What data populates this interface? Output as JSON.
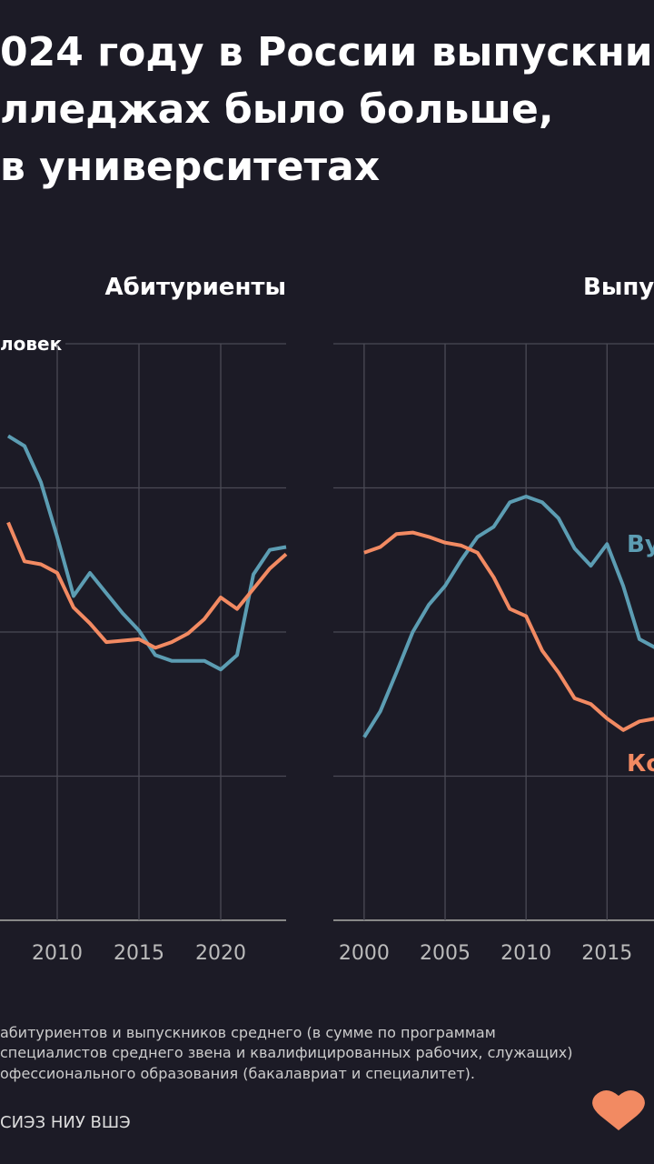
{
  "title_lines": [
    "024 году в России выпускни",
    "лледжах было больше,",
    "в университетах"
  ],
  "chart_data": [
    {
      "type": "line",
      "title": "Абитуриенты",
      "y_label": "ловек",
      "x": [
        2007,
        2008,
        2009,
        2010,
        2011,
        2012,
        2013,
        2014,
        2015,
        2016,
        2017,
        2018,
        2019,
        2020,
        2021,
        2022,
        2023,
        2024
      ],
      "xlim": [
        2006.5,
        2024
      ],
      "xticks": [
        2005,
        2010,
        2015,
        2020
      ],
      "ylim": [
        0,
        4
      ],
      "yticks": [
        0,
        1,
        2,
        3,
        4
      ],
      "grid": true,
      "series": [
        {
          "color": "#5c9db3",
          "values": [
            3.36,
            3.29,
            3.04,
            2.66,
            2.25,
            2.41,
            2.27,
            2.13,
            2.01,
            1.84,
            1.8,
            1.8,
            1.8,
            1.74,
            1.84,
            2.4,
            2.57,
            2.59
          ]
        },
        {
          "color": "#f28a62",
          "values": [
            2.76,
            2.49,
            2.47,
            2.41,
            2.17,
            2.06,
            1.93,
            1.94,
            1.95,
            1.89,
            1.93,
            1.99,
            2.09,
            2.24,
            2.16,
            2.3,
            2.44,
            2.54
          ]
        }
      ]
    },
    {
      "type": "line",
      "title": "Выпу",
      "x": [
        2000,
        2001,
        2002,
        2003,
        2004,
        2005,
        2006,
        2007,
        2008,
        2009,
        2010,
        2011,
        2012,
        2013,
        2014,
        2015,
        2016,
        2017,
        2018
      ],
      "xlim": [
        1998.1,
        2017.9
      ],
      "xticks": [
        2000,
        2005,
        2010,
        2015
      ],
      "ylim": [
        0,
        4
      ],
      "yticks": [
        0,
        1,
        2,
        3,
        4
      ],
      "grid": true,
      "series": [
        {
          "name": "Ву",
          "color": "#5c9db3",
          "values": [
            1.27,
            1.45,
            1.72,
            2.0,
            2.19,
            2.32,
            2.5,
            2.66,
            2.73,
            2.9,
            2.94,
            2.9,
            2.79,
            2.58,
            2.46,
            2.61,
            2.32,
            1.95,
            1.89
          ]
        },
        {
          "name": "Ко",
          "color": "#f28a62",
          "values": [
            2.55,
            2.59,
            2.68,
            2.69,
            2.66,
            2.62,
            2.6,
            2.55,
            2.38,
            2.16,
            2.11,
            1.87,
            1.72,
            1.54,
            1.5,
            1.4,
            1.32,
            1.38,
            1.4
          ]
        }
      ]
    }
  ],
  "footnote": [
    "абитуриентов и выпускников среднего (в сумме по программам",
    "специалистов среднего звена и квалифицированных рабочих, служащих)",
    "офессионального образования (бакалавриат и специалитет)."
  ],
  "source": "СИЭЗ НИУ ВШЭ"
}
